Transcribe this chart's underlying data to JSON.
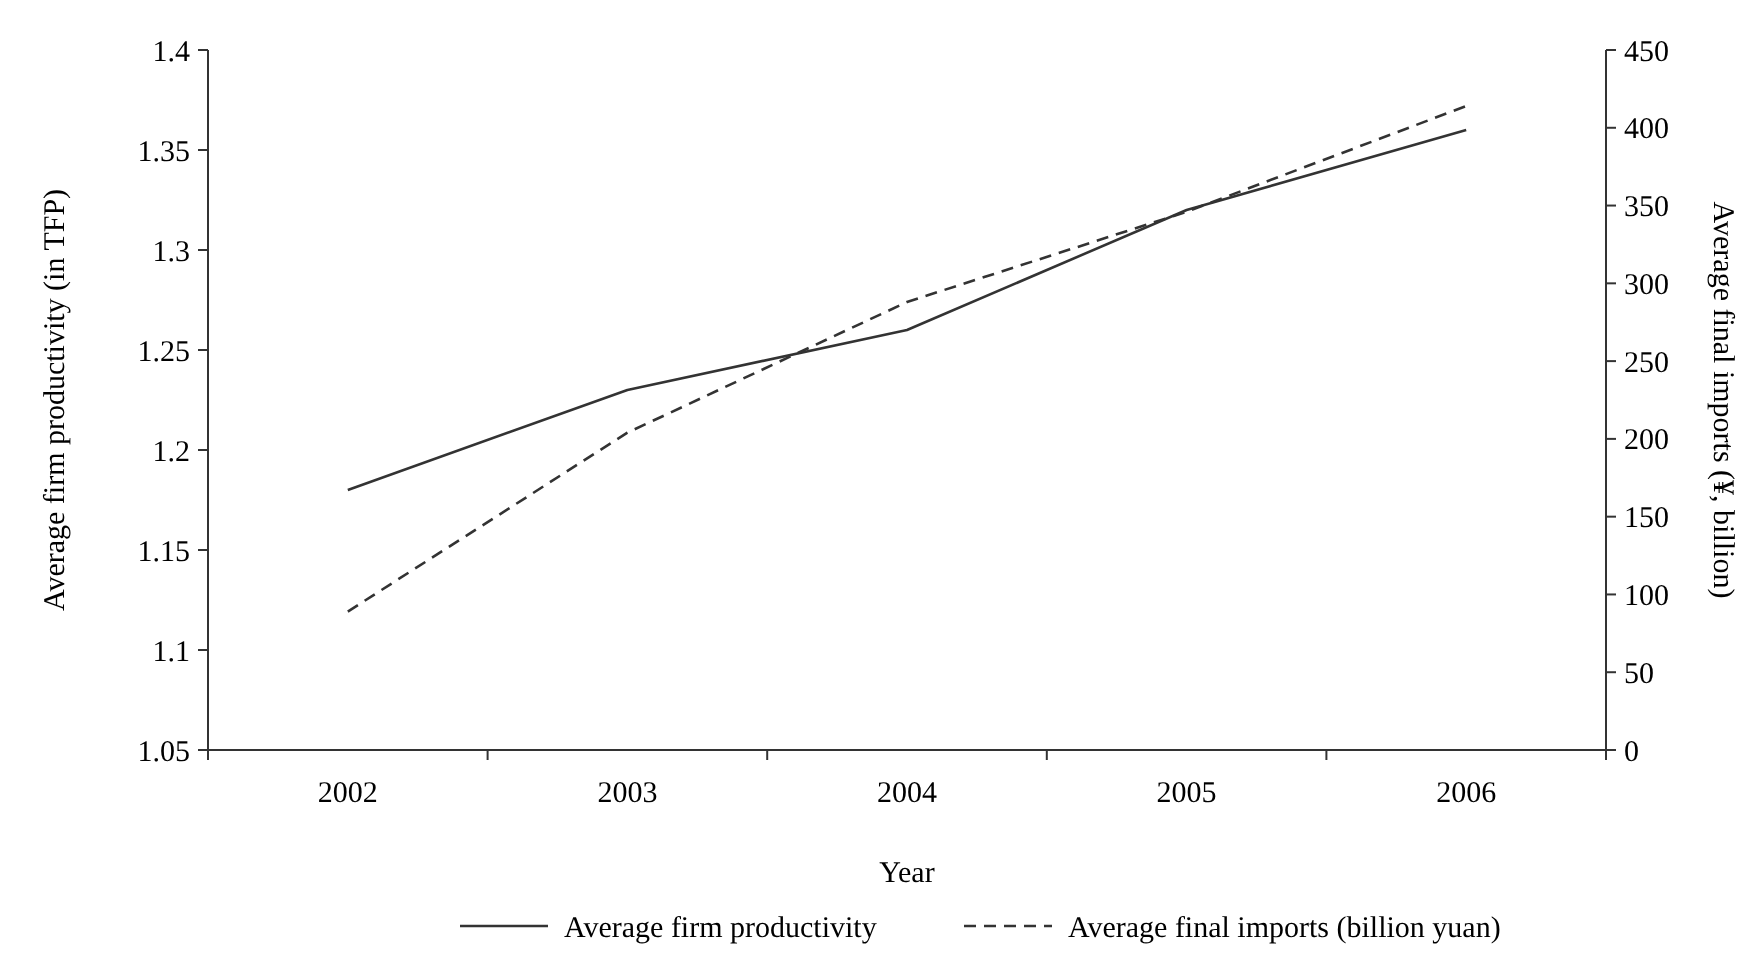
{
  "chart_data": {
    "type": "line",
    "xlabel": "Year",
    "ylabel": "Average firm productivity (in TFP)",
    "y2label": "Average final imports (¥, billion)",
    "categories": [
      "2002",
      "2003",
      "2004",
      "2005",
      "2006"
    ],
    "series": [
      {
        "name": "Average firm productivity",
        "color": "#333333",
        "values": [
          1.18,
          1.23,
          1.26,
          1.32,
          1.36
        ],
        "line_style": "solid"
      },
      {
        "name": "Average final imports (billion yuan)",
        "color": "#333333",
        "values": [
          89,
          204,
          288,
          346,
          414
        ],
        "axis": "y2",
        "line_style": "dashed"
      }
    ],
    "ylim": [
      1.05,
      1.4
    ],
    "yticks": [
      1.05,
      1.1,
      1.15,
      1.2,
      1.25,
      1.3,
      1.35,
      1.4
    ],
    "y2lim": [
      0,
      450
    ],
    "y2ticks": [
      0,
      50,
      100,
      150,
      200,
      250,
      300,
      350,
      400,
      450
    ],
    "grid": false,
    "legend": "bottom",
    "marker": "none"
  }
}
